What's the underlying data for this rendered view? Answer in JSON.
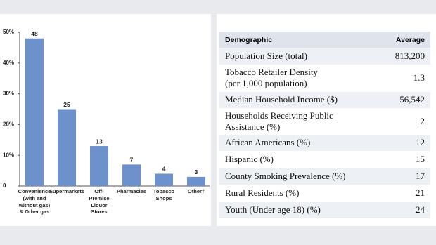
{
  "chart_data": {
    "type": "bar",
    "categories": [
      "Convenience\n(with and\nwithout gas)\n& Other gas",
      "Supermarkets",
      "Off-\nPremise\nLiquor\nStores",
      "Pharmacies",
      "Tobacco\nShops",
      "Other†"
    ],
    "values": [
      48,
      25,
      13,
      7,
      4,
      3
    ],
    "color": "#6d92cb",
    "ylim": [
      0,
      50
    ],
    "yticks": [
      0,
      {
        "value": 10,
        "label": "10%"
      },
      {
        "value": 20,
        "label": "20%"
      },
      {
        "value": 30,
        "label": "30%"
      },
      {
        "value": 40,
        "label": "40%"
      },
      {
        "value": 50,
        "label": "50%"
      }
    ]
  },
  "table": {
    "header": [
      "Demographic",
      "Average"
    ],
    "rows": [
      [
        "Population Size (total)",
        "813,200"
      ],
      [
        "Tobacco Retailer Density\n(per 1,000 population)",
        1.3
      ],
      [
        "Median Household Income ($)",
        "56,542"
      ],
      [
        "Households Receiving Public\nAssistance (%)",
        2
      ],
      [
        "African Americans (%)",
        12
      ],
      [
        "Hispanic (%)",
        15
      ],
      [
        "County Smoking Prevalence (%)",
        17
      ],
      [
        "Rural Residents (%)",
        21
      ],
      [
        "Youth (Under age 18) (%)",
        24
      ]
    ]
  }
}
